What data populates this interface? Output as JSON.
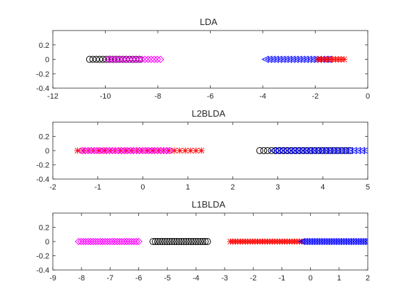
{
  "chart_data": [
    {
      "type": "scatter",
      "title": "LDA",
      "xlim": [
        -12,
        0
      ],
      "ylim": [
        -0.4,
        0.4
      ],
      "xticks": [
        "-12",
        "-10",
        "-8",
        "-6",
        "-4",
        "-2",
        "0"
      ],
      "xtick_values": [
        -12,
        -10,
        -8,
        -6,
        -4,
        -2,
        0
      ],
      "yticks": [
        "-0.4",
        "-0.2",
        "0",
        "0.2"
      ],
      "ytick_values": [
        -0.4,
        -0.2,
        0,
        0.2
      ],
      "grid": false,
      "series": [
        {
          "marker": "circle",
          "color": "#000000",
          "xrange": [
            -10.6,
            -8.7
          ],
          "count": 16
        },
        {
          "marker": "diamond",
          "color": "#ff00ff",
          "xrange": [
            -9.9,
            -7.9
          ],
          "count": 18
        },
        {
          "marker": "left-triangle",
          "color": "#0000ff",
          "xrange": [
            -3.9,
            -1.5
          ],
          "count": 20
        },
        {
          "marker": "asterisk",
          "color": "#ff0000",
          "xrange": [
            -1.9,
            -0.9
          ],
          "count": 10
        }
      ]
    },
    {
      "type": "scatter",
      "title": "L2BLDA",
      "xlim": [
        -2,
        5
      ],
      "ylim": [
        -0.4,
        0.4
      ],
      "xticks": [
        "-2",
        "-1",
        "0",
        "1",
        "2",
        "3",
        "4",
        "5"
      ],
      "xtick_values": [
        -2,
        -1,
        0,
        1,
        2,
        3,
        4,
        5
      ],
      "yticks": [
        "-0.4",
        "-0.2",
        "0",
        "0.2"
      ],
      "ytick_values": [
        -0.4,
        -0.2,
        0,
        0.2
      ],
      "grid": false,
      "series": [
        {
          "marker": "asterisk",
          "color": "#ff0000",
          "xrange": [
            -1.45,
            1.3
          ],
          "count": 24
        },
        {
          "marker": "diamond",
          "color": "#ff00ff",
          "xrange": [
            -1.35,
            0.6
          ],
          "count": 30
        },
        {
          "marker": "circle",
          "color": "#000000",
          "xrange": [
            2.6,
            4.6
          ],
          "count": 24
        },
        {
          "marker": "left-triangle",
          "color": "#0000ff",
          "xrange": [
            2.9,
            4.95
          ],
          "count": 24
        }
      ]
    },
    {
      "type": "scatter",
      "title": "L1BLDA",
      "xlim": [
        -9,
        2
      ],
      "ylim": [
        -0.4,
        0.4
      ],
      "xticks": [
        "-9",
        "-8",
        "-7",
        "-6",
        "-5",
        "-4",
        "-3",
        "-2",
        "-1",
        "0",
        "1",
        "2"
      ],
      "xtick_values": [
        -9,
        -8,
        -7,
        -6,
        -5,
        -4,
        -3,
        -2,
        -1,
        0,
        1,
        2
      ],
      "yticks": [
        "-0.4",
        "-0.2",
        "0",
        "0.2"
      ],
      "ytick_values": [
        -0.4,
        -0.2,
        0,
        0.2
      ],
      "grid": false,
      "series": [
        {
          "marker": "diamond",
          "color": "#ff00ff",
          "xrange": [
            -8.1,
            -6.0
          ],
          "count": 26
        },
        {
          "marker": "circle",
          "color": "#000000",
          "xrange": [
            -5.5,
            -3.6
          ],
          "count": 24
        },
        {
          "marker": "asterisk",
          "color": "#ff0000",
          "xrange": [
            -2.8,
            -0.3
          ],
          "count": 30
        },
        {
          "marker": "left-triangle",
          "color": "#0000ff",
          "xrange": [
            -0.3,
            2.0
          ],
          "count": 28
        }
      ]
    }
  ]
}
